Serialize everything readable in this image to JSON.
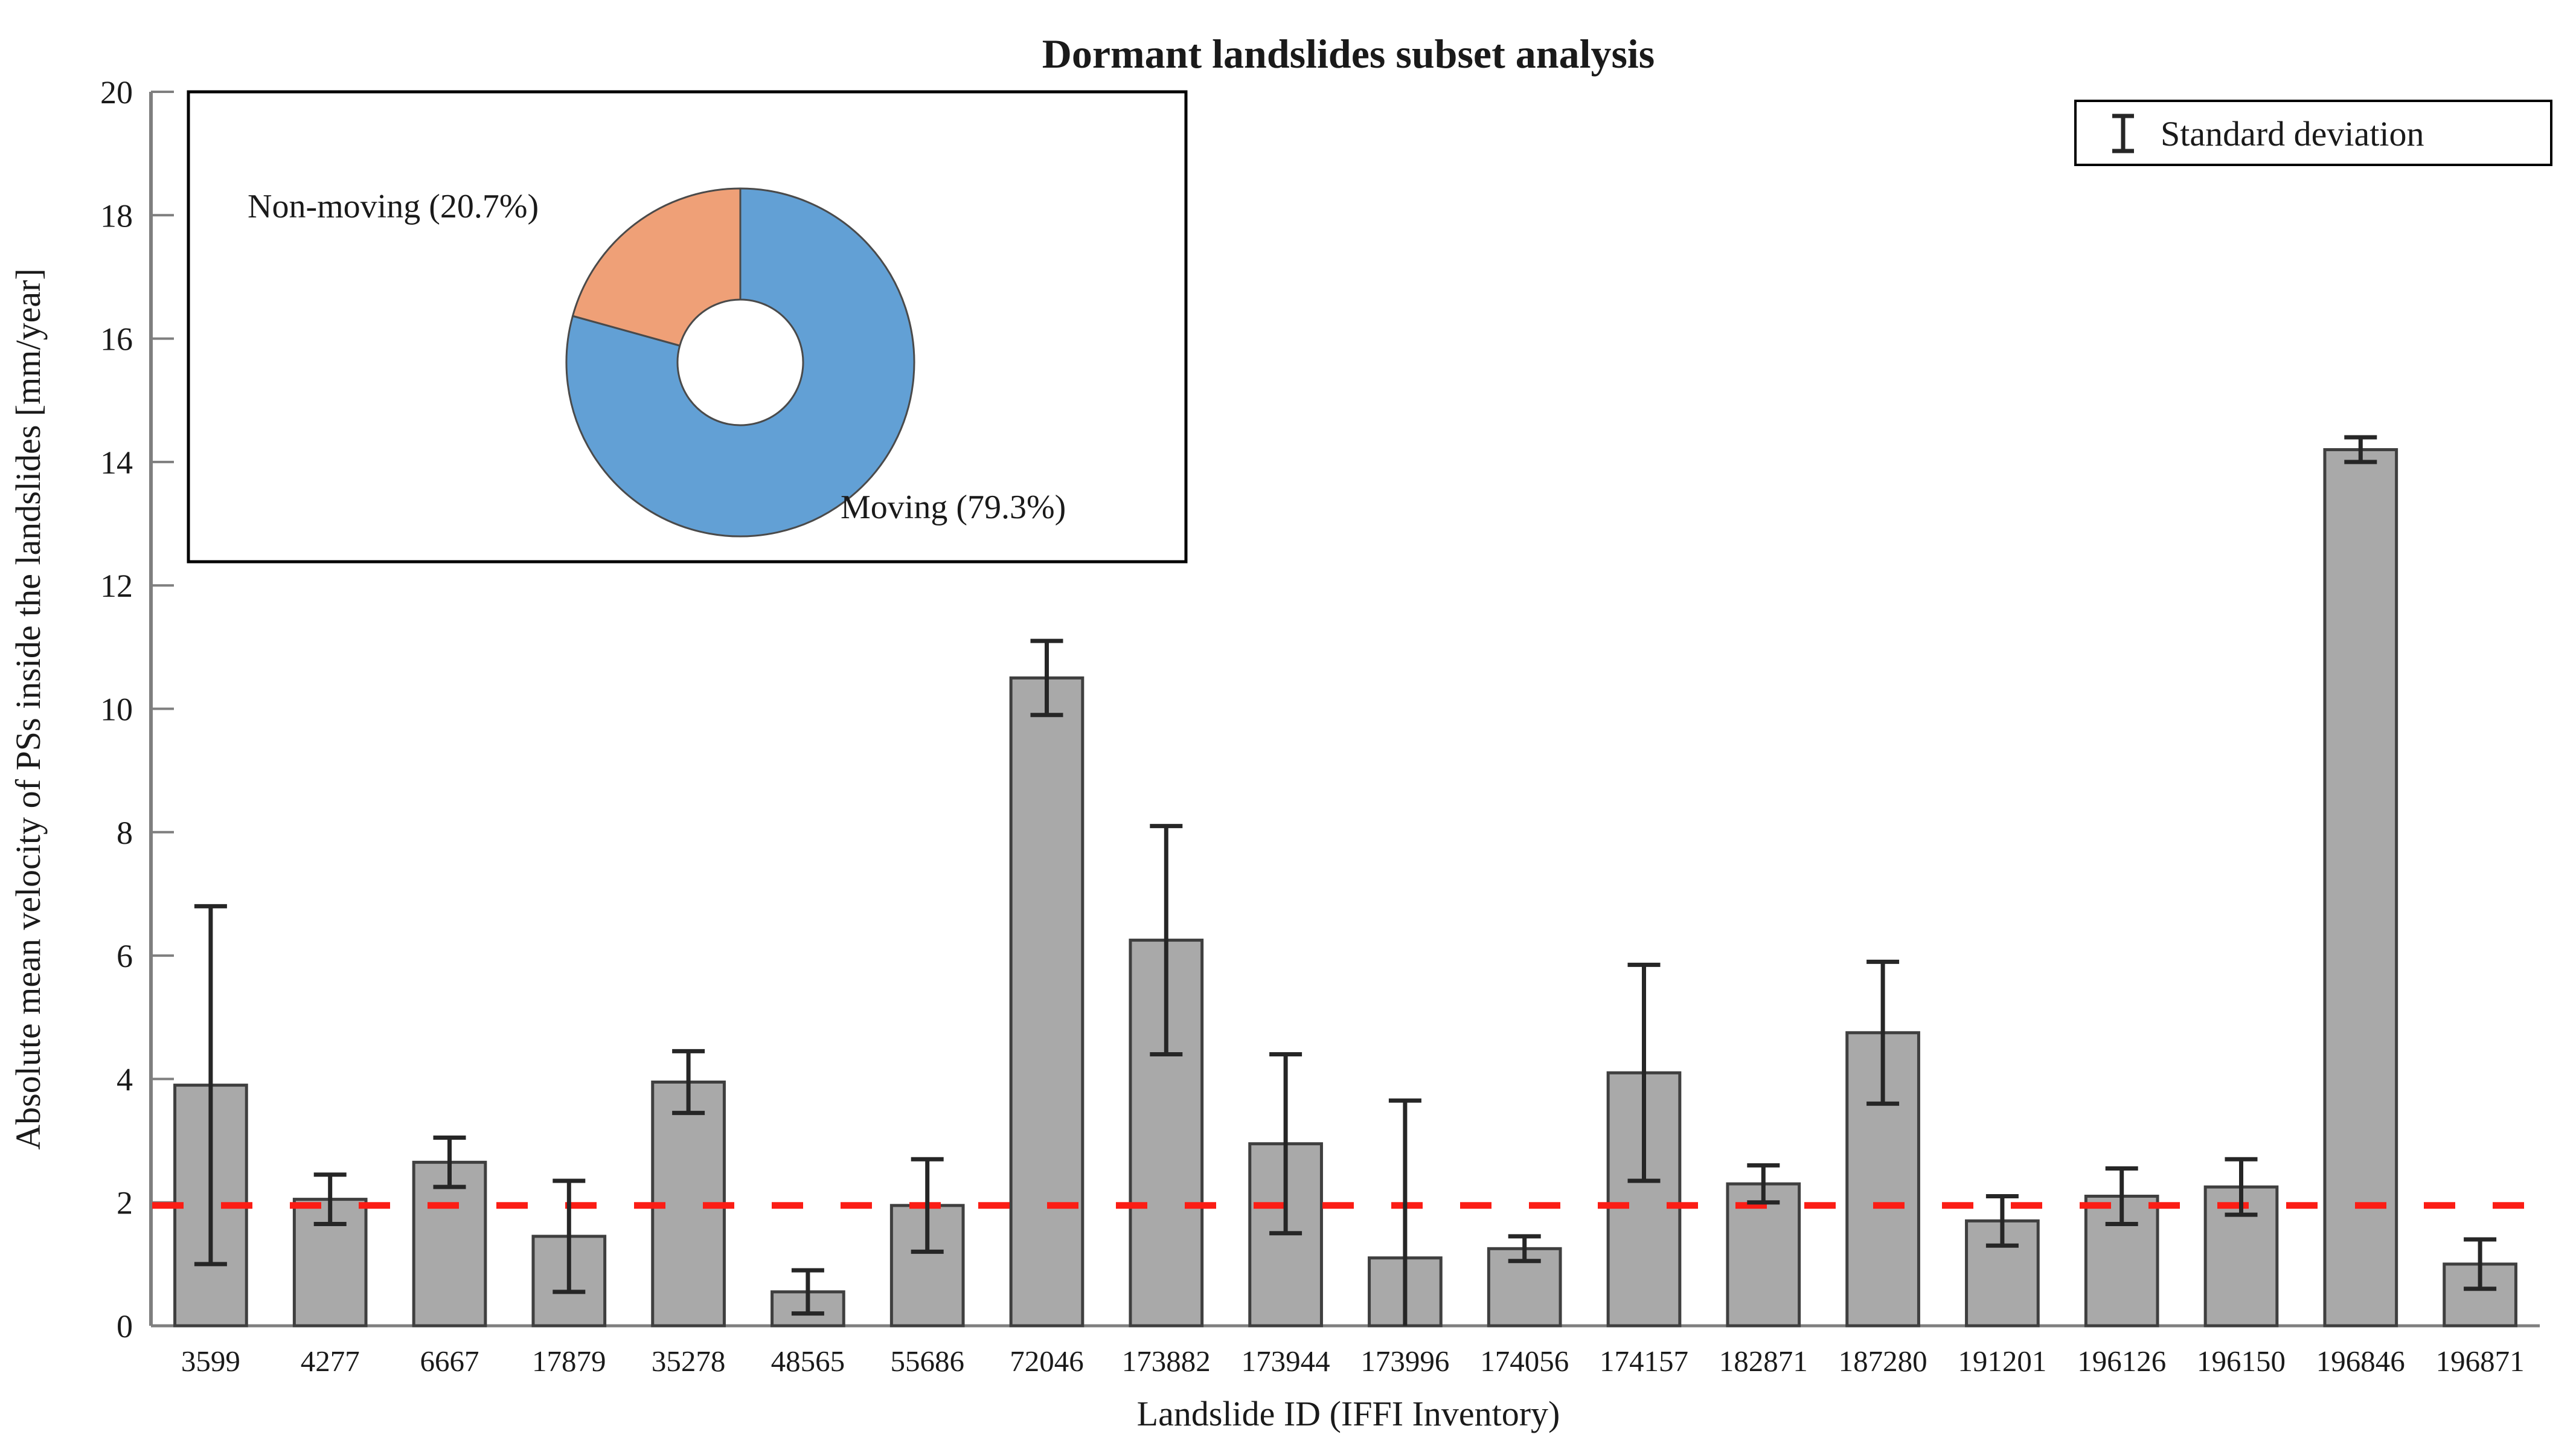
{
  "figure": {
    "background_color": "#ffffff",
    "text_color": "#1a1a1a"
  },
  "chart_data": [
    {
      "type": "bar",
      "title": "Dormant landslides subset analysis",
      "xlabel": "Landslide ID (IFFI Inventory)",
      "ylabel": "Absolute mean velocity of PSs inside the landslides [mm/year]",
      "ylim": [
        0,
        20
      ],
      "ytick_step": 2,
      "grid": false,
      "categories": [
        "3599",
        "4277",
        "6667",
        "17879",
        "35278",
        "48565",
        "55686",
        "72046",
        "173882",
        "173944",
        "173996",
        "174056",
        "174157",
        "182871",
        "187280",
        "191201",
        "196126",
        "196150",
        "196846",
        "196871"
      ],
      "series": [
        {
          "name": "Absolute mean velocity of PSs",
          "values": [
            3.9,
            2.05,
            2.65,
            1.45,
            3.95,
            0.55,
            1.95,
            10.5,
            6.25,
            2.95,
            1.1,
            1.25,
            4.1,
            2.3,
            4.75,
            1.7,
            2.1,
            2.25,
            14.2,
            1.0
          ],
          "errors": [
            2.9,
            0.4,
            0.4,
            0.9,
            0.5,
            0.35,
            0.75,
            0.6,
            1.85,
            1.45,
            2.55,
            0.2,
            1.75,
            0.3,
            1.15,
            0.4,
            0.45,
            0.45,
            0.2,
            0.4
          ],
          "error_type": "standard deviation"
        }
      ],
      "threshold_line": {
        "value": 1.95,
        "color": "#fb1d15",
        "style": "dashed"
      },
      "legend": {
        "position": "top-right",
        "entries": [
          {
            "symbol": "errorbar",
            "label": "Standard deviation"
          }
        ]
      },
      "bar_color": "#a9a9a9",
      "bar_edge_color": "#3f3f3f",
      "errorbar_color": "#262626",
      "axis_color": "#7f7f7f"
    },
    {
      "type": "pie",
      "subtype": "donut",
      "position": "inset top-left",
      "labels": [
        "Moving (79.3%)",
        "Non-moving (20.7%)"
      ],
      "values": [
        79.3,
        20.7
      ],
      "colors": [
        "#62a0d5",
        "#efa077"
      ],
      "edge_color": "#4a4a4a",
      "start_angle_deg": 0,
      "direction": "clockwise"
    }
  ]
}
